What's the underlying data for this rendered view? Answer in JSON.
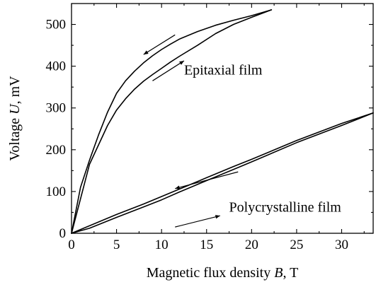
{
  "chart_data": {
    "type": "line",
    "title": "",
    "xlabel": {
      "prefix": "Magnetic flux density ",
      "symbol": "B",
      "suffix": ", T"
    },
    "ylabel": {
      "prefix": "Voltage ",
      "symbol": "U",
      "suffix": ", mV"
    },
    "xlim": [
      0,
      33.5
    ],
    "ylim": [
      0,
      550
    ],
    "xticks": [
      0,
      5,
      10,
      15,
      20,
      25,
      30
    ],
    "yticks": [
      0,
      100,
      200,
      300,
      400,
      500
    ],
    "grid": false,
    "annotations": [
      {
        "text": "Epitaxial film",
        "x": 12.5,
        "y": 380
      },
      {
        "text": "Polycrystalline film",
        "x": 17.5,
        "y": 52
      }
    ],
    "series": [
      {
        "group": "Epitaxial film",
        "branch": "upper",
        "x": [
          0,
          1,
          2,
          3,
          4,
          5,
          6,
          7,
          8,
          9,
          10,
          11,
          12,
          14,
          16,
          18,
          20,
          22.2
        ],
        "values": [
          0,
          110,
          175,
          235,
          290,
          335,
          365,
          388,
          408,
          425,
          440,
          453,
          465,
          483,
          498,
          510,
          521,
          535
        ]
      },
      {
        "group": "Epitaxial film",
        "branch": "lower",
        "x": [
          0,
          2,
          4,
          5,
          6,
          7,
          8,
          9,
          10,
          11,
          12,
          14,
          16,
          18,
          20,
          22.2
        ],
        "values": [
          0,
          165,
          258,
          295,
          322,
          345,
          364,
          380,
          395,
          410,
          424,
          450,
          478,
          500,
          517,
          535
        ]
      },
      {
        "group": "Polycrystalline film",
        "branch": "upper",
        "x": [
          0,
          2,
          5,
          8,
          10,
          12,
          15,
          18,
          20,
          25,
          30,
          33.5
        ],
        "values": [
          0,
          18,
          45,
          70,
          88,
          106,
          133,
          160,
          177,
          222,
          263,
          288
        ]
      },
      {
        "group": "Polycrystalline film",
        "branch": "lower",
        "x": [
          0,
          2,
          5,
          8,
          10,
          12,
          15,
          18,
          20,
          25,
          30,
          33.5
        ],
        "values": [
          0,
          12,
          38,
          63,
          80,
          99,
          126,
          153,
          171,
          217,
          258,
          288
        ]
      }
    ],
    "arrows": [
      {
        "from": [
          11.5,
          475
        ],
        "to": [
          8,
          428
        ]
      },
      {
        "from": [
          9,
          365
        ],
        "to": [
          12.5,
          413
        ]
      },
      {
        "from": [
          18.5,
          147
        ],
        "to": [
          11.5,
          107
        ]
      },
      {
        "from": [
          11.5,
          15
        ],
        "to": [
          16.5,
          42
        ]
      }
    ]
  }
}
